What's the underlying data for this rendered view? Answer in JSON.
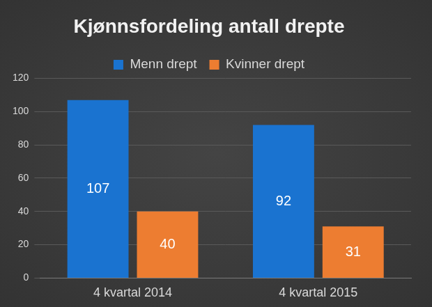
{
  "chart_data": {
    "type": "bar",
    "title": "Kjønnsfordeling antall drepte",
    "categories": [
      "4 kvartal 2014",
      "4 kvartal 2015"
    ],
    "series": [
      {
        "name": "Menn drept",
        "color": "#1a73d0",
        "values": [
          107,
          92
        ]
      },
      {
        "name": "Kvinner drept",
        "color": "#ed7d31",
        "values": [
          40,
          31
        ]
      }
    ],
    "ylim": [
      0,
      120
    ],
    "yticks": [
      0,
      20,
      40,
      60,
      80,
      100,
      120
    ],
    "grid": true,
    "legend": "top",
    "data_labels": true
  }
}
